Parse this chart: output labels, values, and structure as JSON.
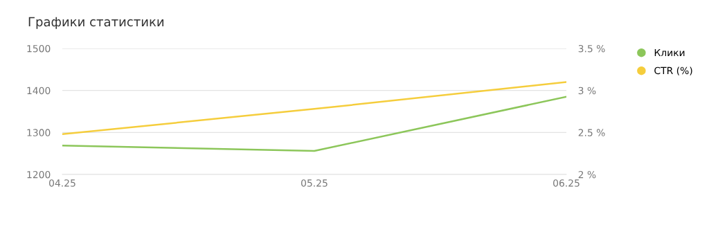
{
  "chart_data": {
    "type": "line",
    "title": "Графики статистики",
    "categories": [
      "04.25",
      "05.25",
      "06.25"
    ],
    "series": [
      {
        "name": "Клики",
        "color": "#8cc65a",
        "values": [
          1269,
          1256,
          1385
        ]
      },
      {
        "name": "CTR (%)",
        "color": "#f5cd3c",
        "values": [
          2.48,
          2.78,
          3.1
        ],
        "axis": "y2"
      }
    ],
    "ylim": [
      1200,
      1500
    ],
    "yticks": [
      1200,
      1300,
      1400,
      1500
    ],
    "y2lim": [
      2,
      3.5
    ],
    "y2ticks": [
      {
        "value": 2,
        "label": "2 %"
      },
      {
        "value": 2.5,
        "label": "2.5 %"
      },
      {
        "value": 3,
        "label": "3 %"
      },
      {
        "value": 3.5,
        "label": "3.5 %"
      }
    ],
    "grid": "y",
    "legend": "top right",
    "line_style": "solid"
  }
}
